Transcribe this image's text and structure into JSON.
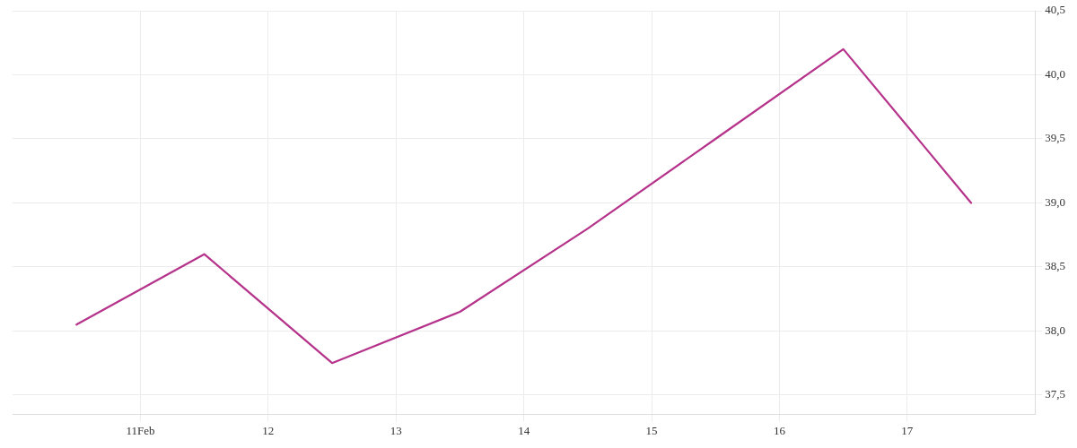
{
  "chart_data": {
    "type": "line",
    "x": [
      10.5,
      11.5,
      12.5,
      13.5,
      14.5,
      15.5,
      16.5,
      17.5
    ],
    "series": [
      {
        "color": "#b5338a",
        "values": [
          38.05,
          38.6,
          37.75,
          38.15,
          38.8,
          39.5,
          40.2,
          39.0
        ]
      }
    ],
    "xlim": [
      10,
      18
    ],
    "xticks": [
      {
        "value": 11,
        "label": "11Feb"
      },
      12,
      13,
      14,
      15,
      16,
      17
    ],
    "ylim": [
      37.35,
      40.5
    ],
    "yticks": [
      {
        "value": 37.5,
        "label": "37,5"
      },
      {
        "value": 38,
        "label": "38,0"
      },
      {
        "value": 38.5,
        "label": "38,5"
      },
      {
        "value": 39,
        "label": "39,0"
      },
      {
        "value": 39.5,
        "label": "39,5"
      },
      {
        "value": 40,
        "label": "40,0"
      },
      {
        "value": 40.5,
        "label": "40,5"
      }
    ],
    "grid": true,
    "marker": "none",
    "line_style": "solid",
    "legend": false
  }
}
